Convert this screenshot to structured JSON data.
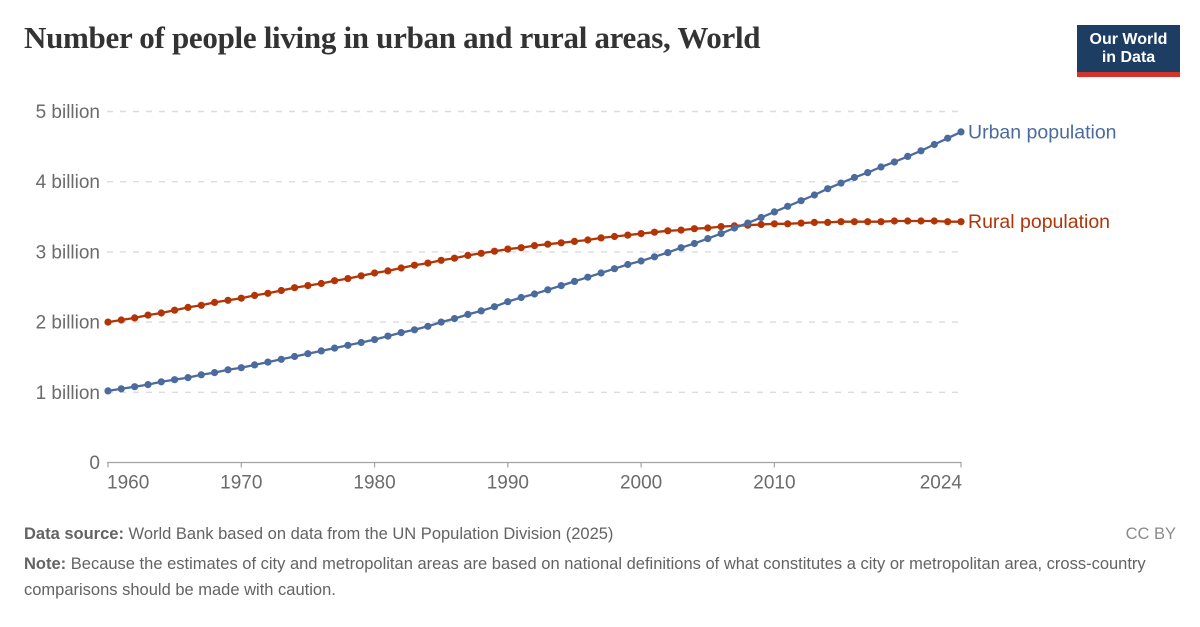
{
  "header": {
    "title": "Number of people living in urban and rural areas, World",
    "logo": {
      "line1": "Our World",
      "line2": "in Data"
    }
  },
  "chart_data": {
    "type": "line",
    "title": "Number of people living in urban and rural areas, World",
    "xlabel": "",
    "ylabel": "",
    "unit": "billion people",
    "xlim": [
      1960,
      2024
    ],
    "ylim": [
      0,
      5
    ],
    "grid": "horizontal dashed",
    "legend_position": "end-of-line labels",
    "x": [
      1960,
      1961,
      1962,
      1963,
      1964,
      1965,
      1966,
      1967,
      1968,
      1969,
      1970,
      1971,
      1972,
      1973,
      1974,
      1975,
      1976,
      1977,
      1978,
      1979,
      1980,
      1981,
      1982,
      1983,
      1984,
      1985,
      1986,
      1987,
      1988,
      1989,
      1990,
      1991,
      1992,
      1993,
      1994,
      1995,
      1996,
      1997,
      1998,
      1999,
      2000,
      2001,
      2002,
      2003,
      2004,
      2005,
      2006,
      2007,
      2008,
      2009,
      2010,
      2011,
      2012,
      2013,
      2014,
      2015,
      2016,
      2017,
      2018,
      2019,
      2020,
      2021,
      2022,
      2023,
      2024
    ],
    "series": [
      {
        "name": "Rural population",
        "color": "#B13507",
        "values_billions": [
          2.0,
          2.03,
          2.06,
          2.1,
          2.13,
          2.17,
          2.21,
          2.24,
          2.28,
          2.31,
          2.34,
          2.38,
          2.41,
          2.45,
          2.49,
          2.52,
          2.55,
          2.59,
          2.62,
          2.66,
          2.7,
          2.73,
          2.77,
          2.81,
          2.84,
          2.88,
          2.91,
          2.95,
          2.98,
          3.01,
          3.04,
          3.06,
          3.09,
          3.11,
          3.13,
          3.15,
          3.17,
          3.2,
          3.22,
          3.24,
          3.26,
          3.28,
          3.3,
          3.31,
          3.33,
          3.34,
          3.36,
          3.37,
          3.38,
          3.39,
          3.4,
          3.4,
          3.41,
          3.42,
          3.42,
          3.43,
          3.43,
          3.43,
          3.43,
          3.44,
          3.44,
          3.44,
          3.44,
          3.43,
          3.43
        ]
      },
      {
        "name": "Urban population",
        "color": "#4B6B9E",
        "values_billions": [
          1.02,
          1.05,
          1.08,
          1.11,
          1.15,
          1.18,
          1.21,
          1.25,
          1.28,
          1.32,
          1.35,
          1.39,
          1.43,
          1.47,
          1.51,
          1.55,
          1.59,
          1.63,
          1.67,
          1.71,
          1.75,
          1.8,
          1.85,
          1.89,
          1.94,
          2.0,
          2.05,
          2.11,
          2.16,
          2.22,
          2.29,
          2.35,
          2.4,
          2.46,
          2.52,
          2.58,
          2.64,
          2.7,
          2.76,
          2.82,
          2.87,
          2.93,
          2.99,
          3.06,
          3.12,
          3.19,
          3.26,
          3.34,
          3.41,
          3.49,
          3.57,
          3.65,
          3.73,
          3.81,
          3.9,
          3.98,
          4.06,
          4.13,
          4.21,
          4.28,
          4.36,
          4.44,
          4.53,
          4.62,
          4.71
        ]
      }
    ],
    "xticks": {
      "years": [
        1960,
        1970,
        1980,
        1990,
        2000,
        2010,
        2024
      ],
      "labels": [
        "1960",
        "1970",
        "1980",
        "1990",
        "2000",
        "2010",
        "2024"
      ]
    },
    "yticks": {
      "values": [
        0,
        1,
        2,
        3,
        4,
        5
      ],
      "labels": [
        "0",
        "1 billion",
        "2 billion",
        "3 billion",
        "4 billion",
        "5 billion"
      ]
    },
    "colors": {
      "gridline": "#dcdcdc",
      "axis": "#a3a3a3",
      "tick_label": "#6b6b6b"
    }
  },
  "footer": {
    "data_source_label": "Data source:",
    "data_source_text": "World Bank based on data from the UN Population Division (2025)",
    "note_label": "Note:",
    "note_text": "Because the estimates of city and metropolitan areas are based on national definitions of what constitutes a city or metropolitan area, cross-country comparisons should be made with caution.",
    "license": "CC BY"
  }
}
